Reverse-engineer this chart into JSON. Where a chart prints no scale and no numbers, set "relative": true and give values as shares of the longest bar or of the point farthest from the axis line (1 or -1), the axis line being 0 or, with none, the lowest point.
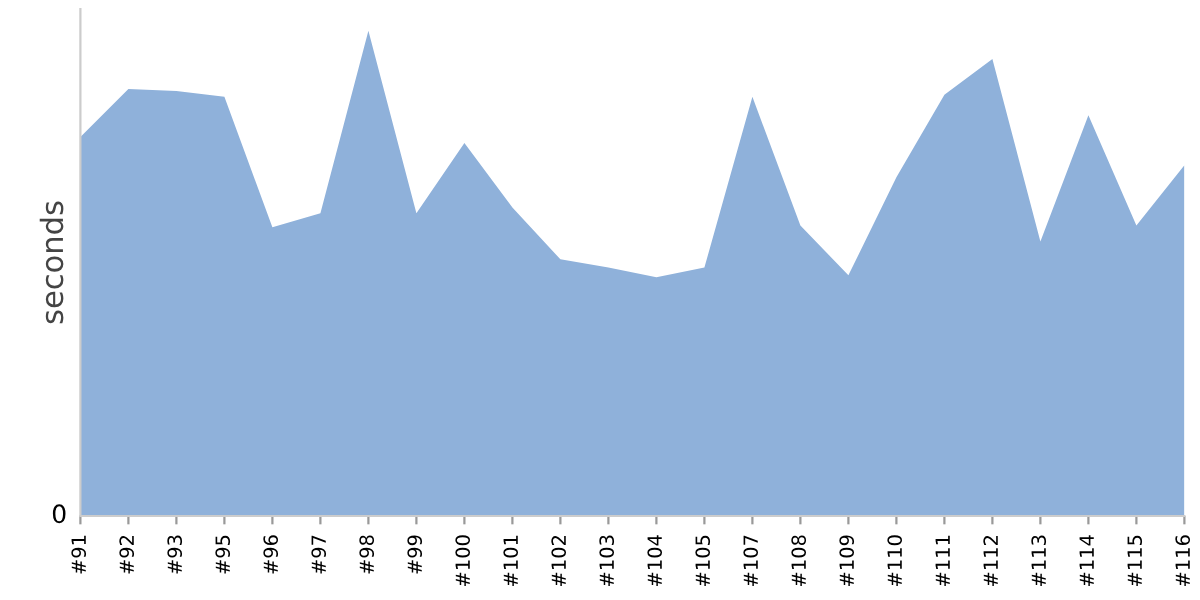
{
  "chart_data": {
    "type": "area",
    "ylabel": "seconds",
    "relative": true,
    "categories": [
      "#91",
      "#92",
      "#93",
      "#95",
      "#96",
      "#97",
      "#98",
      "#99",
      "#100",
      "#101",
      "#102",
      "#103",
      "#104",
      "#105",
      "#107",
      "#108",
      "#109",
      "#110",
      "#111",
      "#112",
      "#113",
      "#114",
      "#115",
      "#116"
    ],
    "series": [
      {
        "color": "#8fb1da",
        "values": [
          0.781,
          0.88,
          0.876,
          0.864,
          0.595,
          0.624,
          1,
          0.624,
          0.769,
          0.636,
          0.529,
          0.512,
          0.492,
          0.512,
          0.864,
          0.599,
          0.496,
          0.698,
          0.868,
          0.942,
          0.566,
          0.826,
          0.599,
          0.723
        ]
      }
    ],
    "annotations": [
      "0"
    ],
    "grid": false,
    "legend": false
  }
}
